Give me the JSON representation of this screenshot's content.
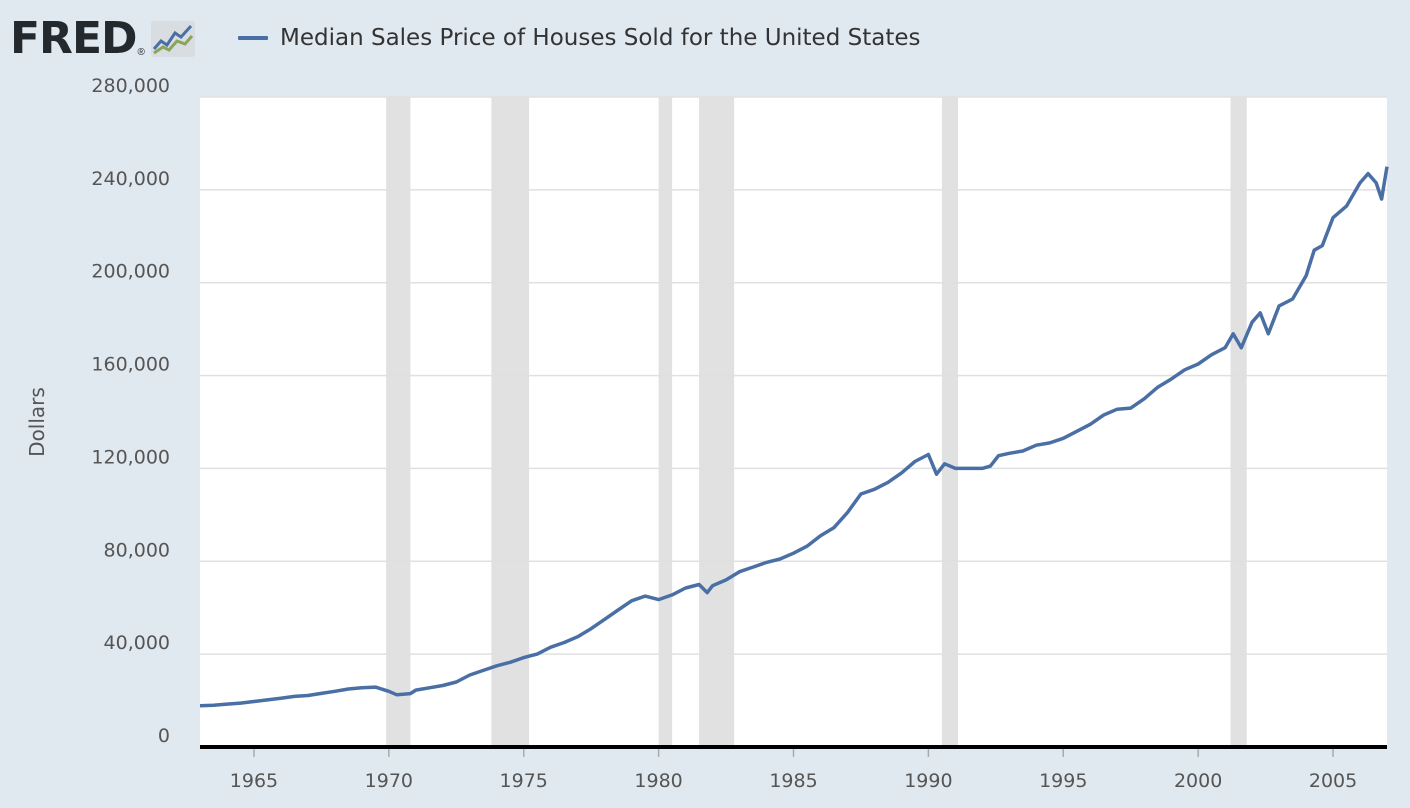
{
  "header": {
    "logo_text": "FRED",
    "logo_mark": "®",
    "logo_icon": "line-chart-icon"
  },
  "colors": {
    "background": "#e1e9f0",
    "plot_background": "#ffffff",
    "series": "#4a6fa5",
    "recession": "#e1e1e1",
    "grid": "#e0e0e0",
    "axis": "#000000"
  },
  "chart_data": {
    "type": "line",
    "title": "",
    "xlabel": "",
    "ylabel": "Dollars",
    "xlim": [
      1963.0,
      2007.0
    ],
    "ylim": [
      0,
      280000
    ],
    "grid": true,
    "legend_position": "top-left",
    "y_ticks": [
      0,
      40000,
      80000,
      120000,
      160000,
      200000,
      240000,
      280000
    ],
    "y_tick_labels": [
      "0",
      "40,000",
      "80,000",
      "120,000",
      "160,000",
      "200,000",
      "240,000",
      "280,000"
    ],
    "x_ticks": [
      1965,
      1970,
      1975,
      1980,
      1985,
      1990,
      1995,
      2000,
      2005
    ],
    "x_tick_labels": [
      "1965",
      "1970",
      "1975",
      "1980",
      "1985",
      "1990",
      "1995",
      "2000",
      "2005"
    ],
    "recessions": [
      [
        1969.9,
        1970.8
      ],
      [
        1973.8,
        1975.2
      ],
      [
        1980.0,
        1980.5
      ],
      [
        1981.5,
        1982.8
      ],
      [
        1990.5,
        1991.1
      ],
      [
        2001.2,
        2001.8
      ]
    ],
    "series": [
      {
        "name": "Median Sales Price of Houses Sold for the United States",
        "points": [
          [
            1963.0,
            17800
          ],
          [
            1963.5,
            18000
          ],
          [
            1964.0,
            18500
          ],
          [
            1964.5,
            18900
          ],
          [
            1965.0,
            19600
          ],
          [
            1965.5,
            20300
          ],
          [
            1966.0,
            21000
          ],
          [
            1966.5,
            21800
          ],
          [
            1967.0,
            22200
          ],
          [
            1967.5,
            23100
          ],
          [
            1968.0,
            24000
          ],
          [
            1968.5,
            25000
          ],
          [
            1969.0,
            25500
          ],
          [
            1969.5,
            25800
          ],
          [
            1970.0,
            24000
          ],
          [
            1970.3,
            22500
          ],
          [
            1970.8,
            23000
          ],
          [
            1971.0,
            24500
          ],
          [
            1971.5,
            25500
          ],
          [
            1972.0,
            26500
          ],
          [
            1972.5,
            28000
          ],
          [
            1973.0,
            31000
          ],
          [
            1973.5,
            33000
          ],
          [
            1974.0,
            35000
          ],
          [
            1974.5,
            36500
          ],
          [
            1975.0,
            38500
          ],
          [
            1975.5,
            40000
          ],
          [
            1976.0,
            43000
          ],
          [
            1976.5,
            45000
          ],
          [
            1977.0,
            47500
          ],
          [
            1977.5,
            51000
          ],
          [
            1978.0,
            55000
          ],
          [
            1978.5,
            59000
          ],
          [
            1979.0,
            63000
          ],
          [
            1979.5,
            65000
          ],
          [
            1980.0,
            63500
          ],
          [
            1980.5,
            65500
          ],
          [
            1981.0,
            68500
          ],
          [
            1981.5,
            70000
          ],
          [
            1981.8,
            66500
          ],
          [
            1982.0,
            69500
          ],
          [
            1982.5,
            72000
          ],
          [
            1983.0,
            75500
          ],
          [
            1983.5,
            77500
          ],
          [
            1984.0,
            79500
          ],
          [
            1984.5,
            81000
          ],
          [
            1985.0,
            83500
          ],
          [
            1985.5,
            86500
          ],
          [
            1986.0,
            91000
          ],
          [
            1986.5,
            94500
          ],
          [
            1987.0,
            101000
          ],
          [
            1987.5,
            109000
          ],
          [
            1988.0,
            111000
          ],
          [
            1988.5,
            114000
          ],
          [
            1989.0,
            118000
          ],
          [
            1989.5,
            123000
          ],
          [
            1990.0,
            126000
          ],
          [
            1990.3,
            117500
          ],
          [
            1990.6,
            122000
          ],
          [
            1991.0,
            120000
          ],
          [
            1991.5,
            120000
          ],
          [
            1992.0,
            120000
          ],
          [
            1992.3,
            121000
          ],
          [
            1992.6,
            125500
          ],
          [
            1993.0,
            126500
          ],
          [
            1993.5,
            127500
          ],
          [
            1994.0,
            130000
          ],
          [
            1994.5,
            131000
          ],
          [
            1995.0,
            133000
          ],
          [
            1995.5,
            136000
          ],
          [
            1996.0,
            139000
          ],
          [
            1996.5,
            143000
          ],
          [
            1997.0,
            145500
          ],
          [
            1997.5,
            146000
          ],
          [
            1998.0,
            150000
          ],
          [
            1998.5,
            155000
          ],
          [
            1999.0,
            158500
          ],
          [
            1999.5,
            162500
          ],
          [
            2000.0,
            165000
          ],
          [
            2000.5,
            169000
          ],
          [
            2001.0,
            172000
          ],
          [
            2001.3,
            178000
          ],
          [
            2001.6,
            172000
          ],
          [
            2002.0,
            183000
          ],
          [
            2002.3,
            187000
          ],
          [
            2002.6,
            178000
          ],
          [
            2003.0,
            190000
          ],
          [
            2003.5,
            193000
          ],
          [
            2004.0,
            203000
          ],
          [
            2004.3,
            214000
          ],
          [
            2004.6,
            216000
          ],
          [
            2005.0,
            228000
          ],
          [
            2005.5,
            233000
          ],
          [
            2006.0,
            243000
          ],
          [
            2006.3,
            247000
          ],
          [
            2006.6,
            243000
          ],
          [
            2006.8,
            236000
          ],
          [
            2007.0,
            250000
          ]
        ]
      }
    ]
  }
}
